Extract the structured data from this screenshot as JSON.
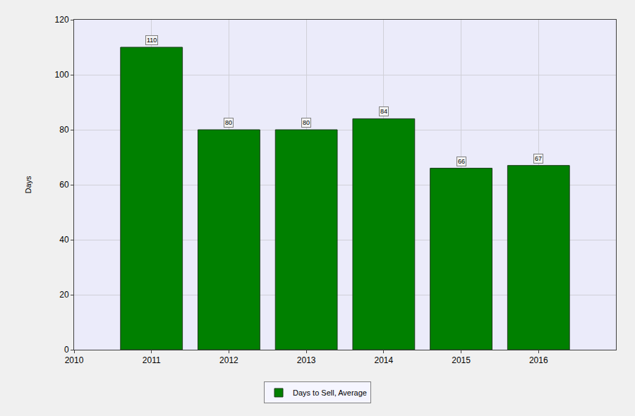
{
  "chart_data": {
    "type": "bar",
    "y_label": "Days",
    "x": [
      2011,
      2012,
      2013,
      2014,
      2015,
      2016
    ],
    "series": [
      {
        "name": "Days to Sell, Average",
        "color": "#008000",
        "values": [
          110,
          80,
          80,
          84,
          66,
          67
        ]
      }
    ],
    "xlim": [
      2010,
      2017
    ],
    "xticks": [
      2010,
      2011,
      2012,
      2013,
      2014,
      2015,
      2016
    ],
    "ylim": [
      0,
      120
    ],
    "yticks": [
      0,
      20,
      40,
      60,
      80,
      100,
      120
    ],
    "grid": true,
    "legend": "bottom",
    "data_labels": true
  }
}
